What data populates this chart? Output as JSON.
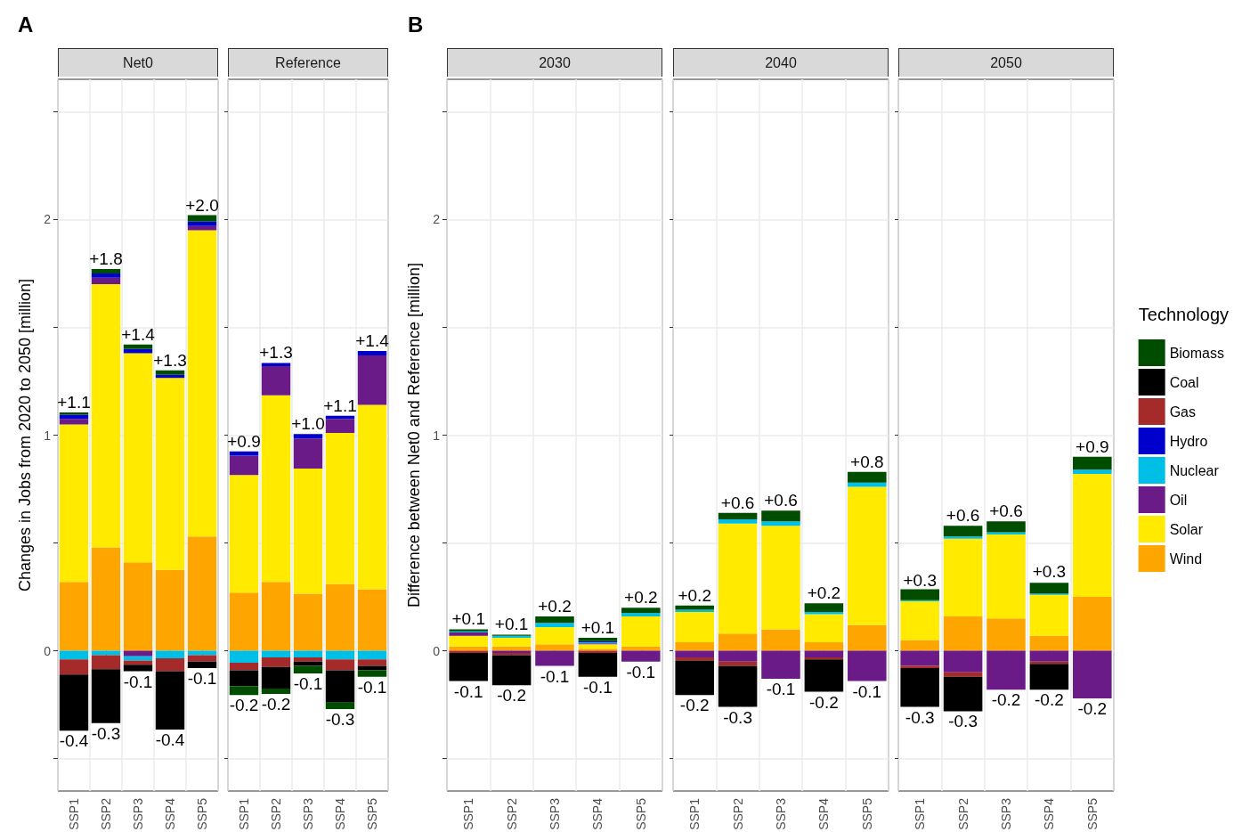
{
  "chart_data": [
    {
      "type": "bar",
      "stacked": true,
      "title": "Net0",
      "ylabel": "Changes in Jobs from 2020 to 2050 [million]",
      "categories": [
        "SSP1",
        "SSP2",
        "SSP3",
        "SSP4",
        "SSP5"
      ],
      "series": [
        {
          "color": "#ffa500",
          "values": [
            0.32,
            0.48,
            0.41,
            0.375,
            0.53
          ]
        },
        {
          "color": "#ffea00",
          "values": [
            0.73,
            1.22,
            0.97,
            0.89,
            1.42
          ]
        },
        {
          "color": "#6a1b87",
          "values": [
            0.025,
            0.03,
            -0.025,
            0,
            0.02
          ]
        },
        {
          "color": "#00bfe6",
          "values": [
            -0.04,
            -0.02,
            -0.02,
            -0.035,
            -0.02
          ]
        },
        {
          "color": "#0000cd",
          "values": [
            0.02,
            0.02,
            0.02,
            0.015,
            0.02
          ]
        },
        {
          "color": "#a52a2a",
          "values": [
            -0.07,
            -0.065,
            -0.02,
            -0.06,
            -0.03
          ]
        },
        {
          "color": "#000000",
          "values": [
            -0.26,
            -0.25,
            -0.03,
            -0.27,
            -0.03
          ]
        },
        {
          "color": "#004d00",
          "values": [
            0.01,
            0.02,
            0.02,
            0.02,
            0.03
          ]
        }
      ],
      "ylim": [
        -0.65,
        2.65
      ],
      "yticks": [
        {
          "value": -0.5,
          "label": null
        },
        0,
        {
          "value": 0.5,
          "label": null
        },
        1,
        {
          "value": 1.5,
          "label": null
        },
        2,
        {
          "value": 2.5,
          "label": null
        }
      ],
      "grid": true,
      "annotations": [
        "A",
        {
          "text": "+1.1",
          "x": "SSP1",
          "y": 1.105
        },
        {
          "text": "+1.8",
          "x": "SSP2",
          "y": 1.77
        },
        {
          "text": "+1.4",
          "x": "SSP3",
          "y": 1.42
        },
        {
          "text": "+1.3",
          "x": "SSP4",
          "y": 1.3
        },
        {
          "text": "+2.0",
          "x": "SSP5",
          "y": 2.02
        },
        {
          "text": "-0.4",
          "x": "SSP1",
          "y": -0.37
        },
        {
          "text": "-0.3",
          "x": "SSP2",
          "y": -0.335
        },
        {
          "text": "-0.1",
          "x": "SSP3",
          "y": -0.095
        },
        {
          "text": "-0.4",
          "x": "SSP4",
          "y": -0.365
        },
        {
          "text": "-0.1",
          "x": "SSP5",
          "y": -0.08
        }
      ]
    },
    {
      "type": "bar",
      "stacked": true,
      "title": "Reference",
      "categories": [
        "SSP1",
        "SSP2",
        "SSP3",
        "SSP4",
        "SSP5"
      ],
      "series": [
        {
          "color": "#ffa500",
          "values": [
            0.27,
            0.32,
            0.265,
            0.31,
            0.285
          ]
        },
        {
          "color": "#ffea00",
          "values": [
            0.545,
            0.865,
            0.58,
            0.7,
            0.855
          ]
        },
        {
          "color": "#6a1b87",
          "values": [
            0.09,
            0.135,
            0.14,
            0.065,
            0.23
          ]
        },
        {
          "color": "#00bfe6",
          "values": [
            -0.055,
            -0.03,
            -0.03,
            -0.04,
            -0.04
          ]
        },
        {
          "color": "#0000cd",
          "values": [
            0.02,
            0.015,
            0.02,
            0.015,
            0.02
          ]
        },
        {
          "color": "#a52a2a",
          "values": [
            -0.035,
            -0.045,
            -0.02,
            -0.05,
            -0.03
          ]
        },
        {
          "color": "#000000",
          "values": [
            -0.075,
            -0.1,
            -0.02,
            -0.15,
            -0.02
          ]
        },
        {
          "color": "#004d00",
          "values": [
            -0.04,
            -0.025,
            -0.035,
            -0.03,
            -0.03
          ]
        }
      ],
      "ylim": [
        -0.65,
        2.65
      ],
      "yticks": [
        {
          "value": -0.5,
          "label": null
        },
        0,
        {
          "value": 0.5,
          "label": null
        },
        1,
        {
          "value": 1.5,
          "label": null
        },
        2,
        {
          "value": 2.5,
          "label": null
        }
      ],
      "grid": true,
      "tick_labels": "x",
      "annotations": [
        {
          "text": "+0.9",
          "x": "SSP1",
          "y": 0.925
        },
        {
          "text": "+1.3",
          "x": "SSP2",
          "y": 1.335
        },
        {
          "text": "+1.0",
          "x": "SSP3",
          "y": 1.005
        },
        {
          "text": "+1.1",
          "x": "SSP4",
          "y": 1.09
        },
        {
          "text": "+1.4",
          "x": "SSP5",
          "y": 1.39
        },
        {
          "text": "-0.2",
          "x": "SSP1",
          "y": -0.205
        },
        {
          "text": "-0.2",
          "x": "SSP2",
          "y": -0.2
        },
        {
          "text": "-0.1",
          "x": "SSP3",
          "y": -0.105
        },
        {
          "text": "-0.3",
          "x": "SSP4",
          "y": -0.27
        },
        {
          "text": "-0.1",
          "x": "SSP5",
          "y": -0.12
        }
      ]
    },
    {
      "type": "bar",
      "stacked": true,
      "title": "2030",
      "ylabel": "Difference between Net0 and Reference [million]",
      "categories": [
        "SSP1",
        "SSP2",
        "SSP3",
        "SSP4",
        "SSP5"
      ],
      "series": [
        {
          "color": "#ffa500",
          "values": [
            0.02,
            0.02,
            0.03,
            0.01,
            0.02
          ]
        },
        {
          "color": "#ffea00",
          "values": [
            0.05,
            0.04,
            0.08,
            0.02,
            0.14
          ]
        },
        {
          "color": "#6a1b87",
          "values": [
            0.015,
            -0.01,
            -0.07,
            0.005,
            -0.05
          ]
        },
        {
          "color": "#00bfe6",
          "values": [
            0.005,
            0.01,
            0.02,
            0.005,
            0.015
          ]
        },
        {
          "color": "#0000cd",
          "values": [
            0,
            0,
            0,
            0.005,
            0
          ]
        },
        {
          "color": "#a52a2a",
          "values": [
            -0.01,
            -0.01,
            0,
            -0.01,
            0
          ]
        },
        {
          "color": "#000000",
          "values": [
            -0.13,
            -0.14,
            0,
            -0.11,
            0
          ]
        },
        {
          "color": "#004d00",
          "values": [
            0.01,
            0.005,
            0.03,
            0.015,
            0.025
          ]
        }
      ],
      "ylim": [
        -0.65,
        2.65
      ],
      "yticks": [
        {
          "value": -0.5,
          "label": null
        },
        0,
        {
          "value": 0.5,
          "label": null
        },
        1,
        {
          "value": 1.5,
          "label": null
        },
        2,
        {
          "value": 2.5,
          "label": null
        }
      ],
      "grid": true,
      "annotations": [
        "B",
        {
          "text": "+0.1",
          "x": "SSP1",
          "y": 0.1
        },
        {
          "text": "+0.1",
          "x": "SSP2",
          "y": 0.075
        },
        {
          "text": "+0.2",
          "x": "SSP3",
          "y": 0.16
        },
        {
          "text": "+0.1",
          "x": "SSP4",
          "y": 0.06
        },
        {
          "text": "+0.2",
          "x": "SSP5",
          "y": 0.2
        },
        {
          "text": "-0.1",
          "x": "SSP1",
          "y": -0.14
        },
        {
          "text": "-0.2",
          "x": "SSP2",
          "y": -0.16
        },
        {
          "text": "-0.1",
          "x": "SSP3",
          "y": -0.07
        },
        {
          "text": "-0.1",
          "x": "SSP4",
          "y": -0.12
        },
        {
          "text": "-0.1",
          "x": "SSP5",
          "y": -0.05
        }
      ]
    },
    {
      "type": "bar",
      "stacked": true,
      "title": "2040",
      "categories": [
        "SSP1",
        "SSP2",
        "SSP3",
        "SSP4",
        "SSP5"
      ],
      "series": [
        {
          "color": "#ffa500",
          "values": [
            0.04,
            0.08,
            0.1,
            0.04,
            0.12
          ]
        },
        {
          "color": "#ffea00",
          "values": [
            0.14,
            0.51,
            0.48,
            0.13,
            0.64
          ]
        },
        {
          "color": "#6a1b87",
          "values": [
            -0.03,
            -0.05,
            -0.13,
            -0.03,
            -0.14
          ]
        },
        {
          "color": "#00bfe6",
          "values": [
            0.01,
            0.02,
            0.02,
            0.01,
            0.02
          ]
        },
        {
          "color": "#0000cd",
          "values": [
            0,
            0,
            0,
            0,
            0
          ]
        },
        {
          "color": "#a52a2a",
          "values": [
            -0.015,
            -0.02,
            0,
            -0.01,
            0
          ]
        },
        {
          "color": "#000000",
          "values": [
            -0.16,
            -0.19,
            0,
            -0.15,
            0
          ]
        },
        {
          "color": "#004d00",
          "values": [
            0.02,
            0.03,
            0.05,
            0.04,
            0.05
          ]
        }
      ],
      "ylim": [
        -0.65,
        2.65
      ],
      "yticks": [
        {
          "value": -0.5,
          "label": null
        },
        0,
        {
          "value": 0.5,
          "label": null
        },
        1,
        {
          "value": 1.5,
          "label": null
        },
        2,
        {
          "value": 2.5,
          "label": null
        }
      ],
      "grid": true,
      "tick_labels": "x",
      "annotations": [
        {
          "text": "+0.2",
          "x": "SSP1",
          "y": 0.21
        },
        {
          "text": "+0.6",
          "x": "SSP2",
          "y": 0.64
        },
        {
          "text": "+0.6",
          "x": "SSP3",
          "y": 0.65
        },
        {
          "text": "+0.2",
          "x": "SSP4",
          "y": 0.22
        },
        {
          "text": "+0.8",
          "x": "SSP5",
          "y": 0.83
        },
        {
          "text": "-0.2",
          "x": "SSP1",
          "y": -0.205
        },
        {
          "text": "-0.3",
          "x": "SSP2",
          "y": -0.26
        },
        {
          "text": "-0.1",
          "x": "SSP3",
          "y": -0.13
        },
        {
          "text": "-0.2",
          "x": "SSP4",
          "y": -0.19
        },
        {
          "text": "-0.1",
          "x": "SSP5",
          "y": -0.14
        }
      ]
    },
    {
      "type": "bar",
      "stacked": true,
      "title": "2050",
      "categories": [
        "SSP1",
        "SSP2",
        "SSP3",
        "SSP4",
        "SSP5"
      ],
      "series": [
        {
          "name": "Wind",
          "color": "#ffa500",
          "values": [
            0.05,
            0.16,
            0.15,
            0.07,
            0.25
          ]
        },
        {
          "name": "Solar",
          "color": "#ffea00",
          "values": [
            0.18,
            0.36,
            0.39,
            0.19,
            0.57
          ]
        },
        {
          "name": "Oil",
          "color": "#6a1b87",
          "values": [
            -0.07,
            -0.1,
            -0.18,
            -0.05,
            -0.22
          ]
        },
        {
          "name": "Nuclear",
          "color": "#00bfe6",
          "values": [
            0.005,
            0.01,
            0.01,
            0.005,
            0.02
          ]
        },
        {
          "name": "Hydro",
          "color": "#0000cd",
          "values": [
            0,
            0,
            0,
            0,
            0
          ]
        },
        {
          "name": "Gas",
          "color": "#a52a2a",
          "values": [
            -0.01,
            -0.02,
            0,
            -0.01,
            0
          ]
        },
        {
          "name": "Coal",
          "color": "#000000",
          "values": [
            -0.18,
            -0.16,
            0,
            -0.12,
            0
          ]
        },
        {
          "name": "Biomass",
          "color": "#004d00",
          "values": [
            0.05,
            0.05,
            0.05,
            0.05,
            0.06
          ]
        }
      ],
      "ylim": [
        -0.65,
        2.65
      ],
      "yticks": [
        {
          "value": -0.5,
          "label": null
        },
        0,
        {
          "value": 0.5,
          "label": null
        },
        1,
        {
          "value": 1.5,
          "label": null
        },
        2,
        {
          "value": 2.5,
          "label": null
        }
      ],
      "grid": true,
      "tick_labels": "x",
      "legend": "right",
      "legend_title": "Technology",
      "annotations": [
        {
          "text": "+0.3",
          "x": "SSP1",
          "y": 0.28
        },
        {
          "text": "+0.6",
          "x": "SSP2",
          "y": 0.58
        },
        {
          "text": "+0.6",
          "x": "SSP3",
          "y": 0.6
        },
        {
          "text": "+0.3",
          "x": "SSP4",
          "y": 0.32
        },
        {
          "text": "+0.9",
          "x": "SSP5",
          "y": 0.9
        },
        {
          "text": "-0.3",
          "x": "SSP1",
          "y": -0.26
        },
        {
          "text": "-0.3",
          "x": "SSP2",
          "y": -0.28
        },
        {
          "text": "-0.2",
          "x": "SSP3",
          "y": -0.18
        },
        {
          "text": "-0.2",
          "x": "SSP4",
          "y": -0.18
        },
        {
          "text": "-0.2",
          "x": "SSP5",
          "y": -0.22
        }
      ]
    }
  ]
}
